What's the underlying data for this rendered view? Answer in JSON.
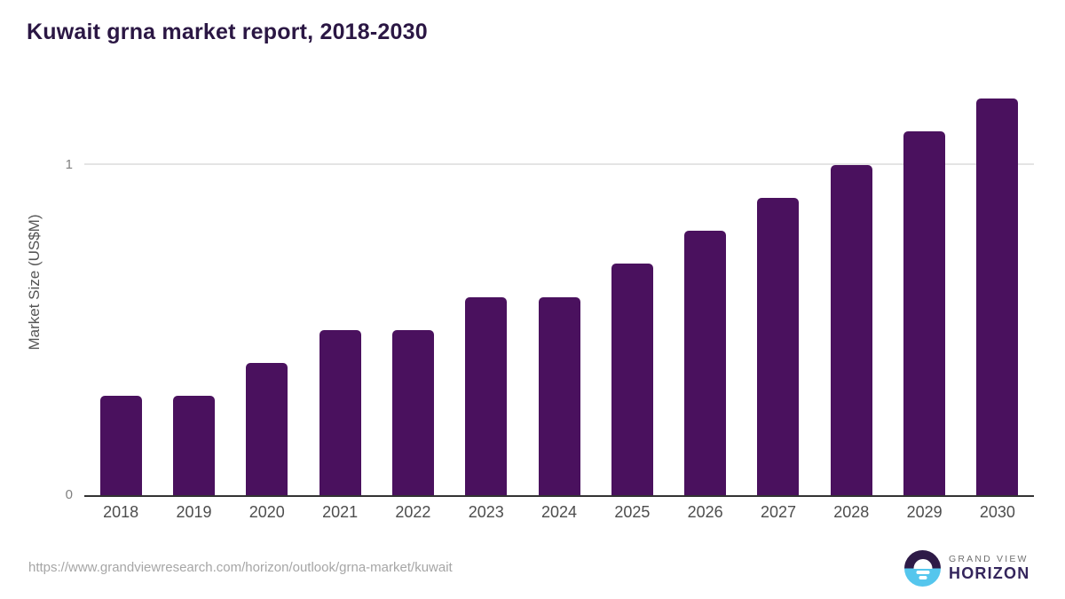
{
  "chart_data": {
    "type": "bar",
    "title": "Kuwait grna market report, 2018-2030",
    "categories": [
      "2018",
      "2019",
      "2020",
      "2021",
      "2022",
      "2023",
      "2024",
      "2025",
      "2026",
      "2027",
      "2028",
      "2029",
      "2030"
    ],
    "values": [
      0.3,
      0.3,
      0.4,
      0.5,
      0.5,
      0.6,
      0.6,
      0.7,
      0.8,
      0.9,
      1.0,
      1.1,
      1.2
    ],
    "xlabel": "",
    "ylabel": "Market Size (US$M)",
    "yticks": [
      0,
      1
    ],
    "ylim": [
      0,
      1.23
    ],
    "grid": "horizontal gridline at y=1 only",
    "legend_position": "none",
    "bar_color": "#4a115e"
  },
  "footer": {
    "source_url": "https://www.grandviewresearch.com/horizon/outlook/grna-market/kuwait",
    "logo": {
      "top_text": "GRAND VIEW",
      "bottom_text": "HORIZON"
    }
  },
  "colors": {
    "bar": "#4a115e",
    "title": "#2b1744",
    "axis_line": "#333333",
    "gridline": "#e4e4e4",
    "ytick_text": "#808080",
    "xlabel_text": "#4d4d4d",
    "axis_title_text": "#555555",
    "url_text": "#a6a6a6",
    "logo_dark_half": "#2e1a47",
    "logo_blue_half": "#55c6ed",
    "logo_gray_text": "#6f6f6f",
    "logo_purple_text": "#34255c"
  }
}
